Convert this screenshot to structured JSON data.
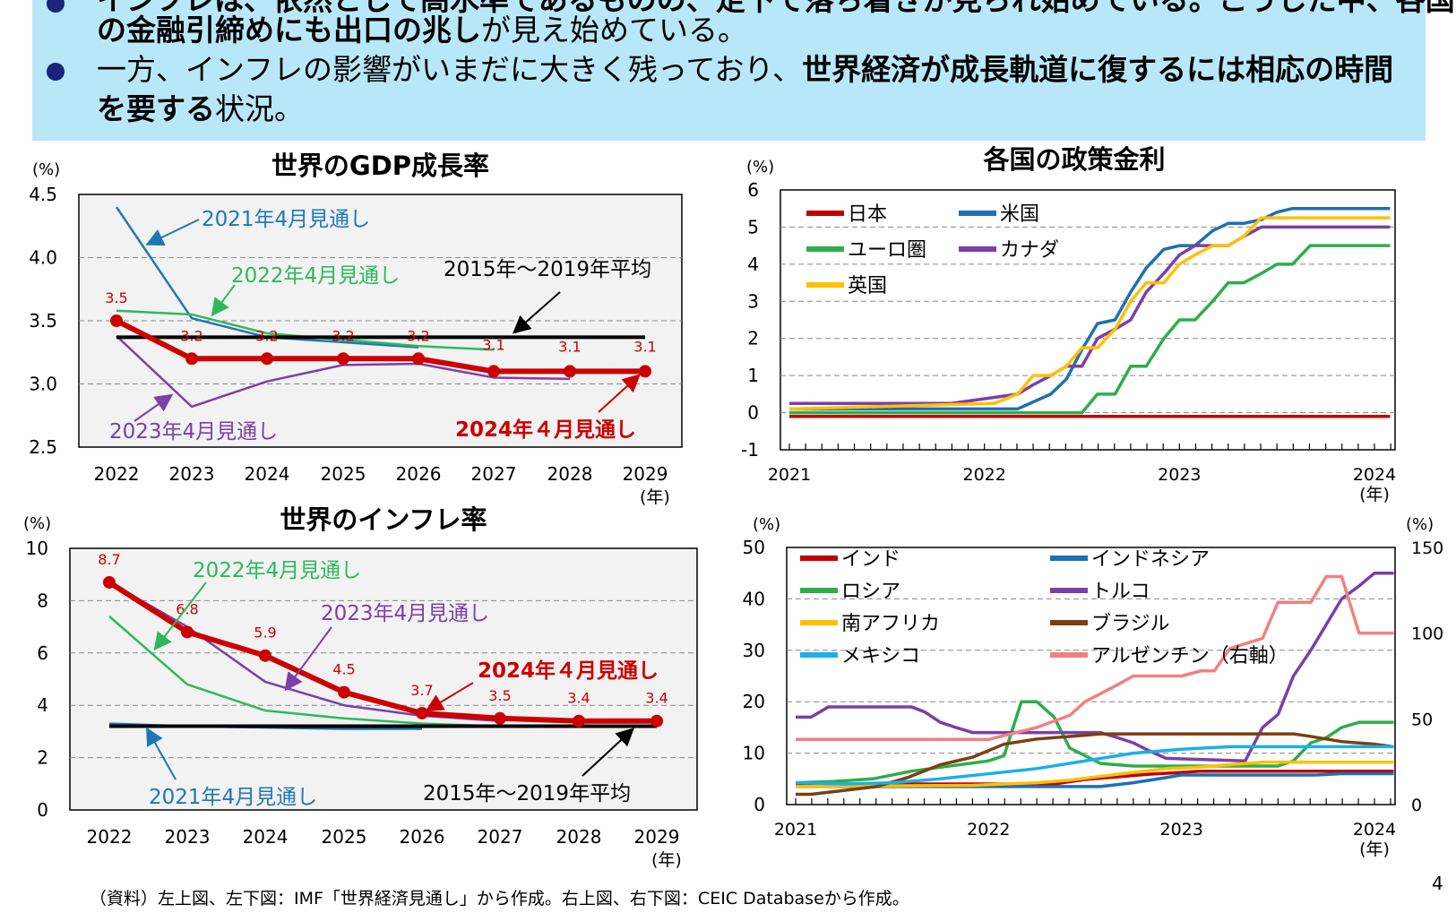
{
  "banner": {
    "line0": "インフレは、依然として高水準であるものの、足下で落ち着きが見られ始めている。こうした中、各国",
    "line1_bold": "の金融引締めにも出口の兆し",
    "line1_rest": "が見え始めている。",
    "line2_a": "一方、インフレの影響がいまだに大きく残っており、",
    "line2_bold": "世界経済が成長軌道に復するには相応の時間",
    "line3_bold": "を要する",
    "line3_rest": "状況。"
  },
  "footnote": "（資料）左上図、左下図：IMF「世界経済見通し」から作成。右上図、右下図：CEIC Databaseから作成。",
  "page_number": "4",
  "chart_data": [
    {
      "id": "gdp",
      "type": "line",
      "title": "世界のGDP成長率",
      "ylabel": "(%)",
      "xlabel": "(年)",
      "x": [
        2022,
        2023,
        2024,
        2025,
        2026,
        2027,
        2028,
        2029
      ],
      "ylim": [
        2.5,
        4.5
      ],
      "yticks": [
        "2.5",
        "3.0",
        "3.5",
        "4.0",
        "4.5"
      ],
      "series": [
        {
          "name": "2021年4月見通し",
          "color": "#1f77b4",
          "x": [
            2022,
            2023,
            2024,
            2025,
            2026
          ],
          "values": [
            4.4,
            3.52,
            3.37,
            3.33,
            3.29
          ]
        },
        {
          "name": "2022年4月見通し",
          "color": "#2eb85c",
          "x": [
            2022,
            2023,
            2024,
            2025,
            2026,
            2027
          ],
          "values": [
            3.58,
            3.55,
            3.4,
            3.35,
            3.3,
            3.27
          ]
        },
        {
          "name": "2023年4月見通し",
          "color": "#7b3fa8",
          "x": [
            2022,
            2023,
            2024,
            2025,
            2026,
            2027,
            2028
          ],
          "values": [
            3.38,
            2.82,
            3.02,
            3.15,
            3.16,
            3.05,
            3.04
          ]
        },
        {
          "name": "2015年～2019年平均",
          "color": "#000000",
          "x": [
            2022,
            2029
          ],
          "values": [
            3.37,
            3.37
          ]
        },
        {
          "name": "2024年４月見通し",
          "color": "#cc0000",
          "x": [
            2022,
            2023,
            2024,
            2025,
            2026,
            2027,
            2028,
            2029
          ],
          "values": [
            3.5,
            3.2,
            3.2,
            3.2,
            3.2,
            3.1,
            3.1,
            3.1
          ],
          "labels": [
            "3.5",
            "3.2",
            "3.2",
            "3.2",
            "3.2",
            "3.1",
            "3.1",
            "3.1"
          ]
        }
      ],
      "annotations": [
        "2021年4月見通し",
        "2022年4月見通し",
        "2015年～2019年平均",
        "2023年4月見通し",
        "2024年４月見通し"
      ]
    },
    {
      "id": "policy",
      "type": "line",
      "title": "各国の政策金利",
      "ylabel": "(%)",
      "xlabel": "(年)",
      "xlim": [
        2021,
        2024
      ],
      "xticks": [
        "2021",
        "2022",
        "2023",
        "2024"
      ],
      "ylim": [
        -1,
        6
      ],
      "yticks": [
        "-1",
        "0",
        "1",
        "2",
        "3",
        "4",
        "5",
        "6"
      ],
      "series": [
        {
          "name": "日本",
          "color": "#c00000",
          "x": [
            2021,
            2024.08
          ],
          "values": [
            -0.1,
            -0.1
          ]
        },
        {
          "name": "米国",
          "color": "#1f6fb4",
          "x": [
            2021,
            2022.17,
            2022.34,
            2022.42,
            2022.5,
            2022.58,
            2022.67,
            2022.75,
            2022.83,
            2022.92,
            2023.0,
            2023.08,
            2023.17,
            2023.25,
            2023.33,
            2023.42,
            2023.5,
            2023.58,
            2024.08
          ],
          "values": [
            0.1,
            0.1,
            0.5,
            0.9,
            1.7,
            2.4,
            2.5,
            3.25,
            3.9,
            4.4,
            4.5,
            4.5,
            4.9,
            5.1,
            5.1,
            5.2,
            5.4,
            5.5,
            5.5
          ]
        },
        {
          "name": "ユーロ圏",
          "color": "#2ead4a",
          "x": [
            2021,
            2022.5,
            2022.58,
            2022.67,
            2022.75,
            2022.83,
            2022.92,
            2023.0,
            2023.08,
            2023.17,
            2023.25,
            2023.33,
            2023.42,
            2023.5,
            2023.58,
            2023.67,
            2024.08
          ],
          "values": [
            0,
            0,
            0.5,
            0.5,
            1.25,
            1.25,
            2.0,
            2.5,
            2.5,
            3.0,
            3.5,
            3.5,
            3.75,
            4.0,
            4.0,
            4.5,
            4.5
          ]
        },
        {
          "name": "カナダ",
          "color": "#7b3fa8",
          "x": [
            2021,
            2021.83,
            2022.17,
            2022.25,
            2022.34,
            2022.42,
            2022.5,
            2022.58,
            2022.67,
            2022.75,
            2022.83,
            2022.92,
            2023.0,
            2023.08,
            2023.17,
            2023.25,
            2023.33,
            2023.42,
            2024.08
          ],
          "values": [
            0.25,
            0.25,
            0.5,
            0.75,
            1.0,
            1.25,
            1.25,
            2.0,
            2.25,
            2.5,
            3.25,
            3.75,
            4.25,
            4.5,
            4.5,
            4.5,
            4.75,
            5.0,
            5.0
          ]
        },
        {
          "name": "英国",
          "color": "#ffc000",
          "x": [
            2021,
            2022.05,
            2022.17,
            2022.25,
            2022.34,
            2022.42,
            2022.5,
            2022.58,
            2022.67,
            2022.75,
            2022.83,
            2022.92,
            2023.0,
            2023.08,
            2023.17,
            2023.25,
            2023.33,
            2023.42,
            2024.08
          ],
          "values": [
            0.1,
            0.25,
            0.5,
            1.0,
            1.0,
            1.25,
            1.75,
            1.75,
            2.25,
            3.0,
            3.5,
            3.5,
            4.0,
            4.25,
            4.5,
            4.5,
            4.75,
            5.25,
            5.25
          ]
        }
      ]
    },
    {
      "id": "inflation",
      "type": "line",
      "title": "世界のインフレ率",
      "ylabel": "(%)",
      "xlabel": "(年)",
      "x": [
        2022,
        2023,
        2024,
        2025,
        2026,
        2027,
        2028,
        2029
      ],
      "ylim": [
        0,
        10
      ],
      "yticks": [
        "0",
        "2",
        "4",
        "6",
        "8",
        "10"
      ],
      "series": [
        {
          "name": "2021年4月見通し",
          "color": "#1f77b4",
          "x": [
            2022,
            2023,
            2024,
            2025,
            2026
          ],
          "values": [
            3.3,
            3.2,
            3.15,
            3.1,
            3.1
          ]
        },
        {
          "name": "2022年4月見通し",
          "color": "#2eb85c",
          "x": [
            2022,
            2023,
            2024,
            2025,
            2026,
            2027
          ],
          "values": [
            7.4,
            4.8,
            3.8,
            3.5,
            3.3,
            3.2
          ]
        },
        {
          "name": "2023年4月見通し",
          "color": "#7b3fa8",
          "x": [
            2022,
            2023,
            2024,
            2025,
            2026,
            2027
          ],
          "values": [
            8.7,
            7.0,
            4.9,
            4.0,
            3.6,
            3.4
          ]
        },
        {
          "name": "2015年～2019年平均",
          "color": "#000000",
          "x": [
            2022,
            2029
          ],
          "values": [
            3.2,
            3.2
          ]
        },
        {
          "name": "2024年４月見通し",
          "color": "#cc0000",
          "x": [
            2022,
            2023,
            2024,
            2025,
            2026,
            2027,
            2028,
            2029
          ],
          "values": [
            8.7,
            6.8,
            5.9,
            4.5,
            3.7,
            3.5,
            3.4,
            3.4
          ],
          "labels": [
            "8.7",
            "6.8",
            "5.9",
            "4.5",
            "3.7",
            "3.5",
            "3.4",
            "3.4"
          ]
        }
      ],
      "annotations": [
        "2022年4月見通し",
        "2023年4月見通し",
        "2024年４月見通し",
        "2021年4月見通し",
        "2015年～2019年平均"
      ]
    },
    {
      "id": "emerging",
      "type": "line",
      "title": "",
      "ylabel": "(%)",
      "ylabel_right": "(%)",
      "xlabel": "(年)",
      "xlim": [
        2021,
        2024
      ],
      "xticks": [
        "2021",
        "2022",
        "2023",
        "2024"
      ],
      "ylim": [
        0,
        50
      ],
      "yticks": [
        "0",
        "10",
        "20",
        "30",
        "40",
        "50"
      ],
      "ylim_right": [
        0,
        150
      ],
      "yticks_right": [
        "0",
        "50",
        "100",
        "150"
      ],
      "series": [
        {
          "name": "インド",
          "color": "#c00000",
          "x": [
            2021,
            2022.34,
            2022.5,
            2022.67,
            2022.83,
            2023.0,
            2023.1,
            2024.1
          ],
          "values": [
            4,
            4,
            4.9,
            5.4,
            5.9,
            6.25,
            6.5,
            6.5
          ]
        },
        {
          "name": "インドネシア",
          "color": "#1f6fb4",
          "x": [
            2021,
            2022.58,
            2022.75,
            2022.92,
            2023.0,
            2023.7,
            2023.83,
            2024.1
          ],
          "values": [
            3.5,
            3.5,
            4.25,
            5.25,
            5.75,
            5.75,
            6.0,
            6.0
          ]
        },
        {
          "name": "ロシア",
          "color": "#2ead4a",
          "x": [
            2021,
            2021.2,
            2021.4,
            2021.6,
            2021.8,
            2022.0,
            2022.08,
            2022.17,
            2022.25,
            2022.34,
            2022.42,
            2022.5,
            2022.58,
            2022.75,
            2023.0,
            2023.5,
            2023.58,
            2023.67,
            2023.75,
            2023.83,
            2023.92,
            2024.1
          ],
          "values": [
            4.25,
            4.5,
            5.0,
            6.5,
            7.5,
            8.5,
            9.5,
            20,
            20,
            17,
            11,
            9.5,
            8,
            7.5,
            7.5,
            7.5,
            8.5,
            12,
            13,
            15,
            16,
            16
          ]
        },
        {
          "name": "トルコ",
          "color": "#7b3fa8",
          "x": [
            2021,
            2021.08,
            2021.17,
            2021.6,
            2021.67,
            2021.75,
            2021.83,
            2021.92,
            2022.58,
            2022.67,
            2022.75,
            2022.83,
            2022.92,
            2023.33,
            2023.42,
            2023.5,
            2023.58,
            2023.67,
            2023.75,
            2023.83,
            2023.92,
            2024.0,
            2024.1
          ],
          "values": [
            17,
            17,
            19,
            19,
            18,
            16,
            15,
            14,
            14,
            13,
            12,
            10.5,
            9,
            8.5,
            15,
            17.5,
            25,
            30,
            35,
            40,
            42.5,
            45,
            45
          ]
        },
        {
          "name": "南アフリカ",
          "color": "#ffc000",
          "x": [
            2021,
            2021.92,
            2022.08,
            2022.25,
            2022.42,
            2022.58,
            2022.75,
            2022.92,
            2023.08,
            2023.25,
            2023.42,
            2024.1
          ],
          "values": [
            3.5,
            3.75,
            4.0,
            4.25,
            4.75,
            5.5,
            6.25,
            7.0,
            7.25,
            7.75,
            8.25,
            8.25
          ]
        },
        {
          "name": "ブラジル",
          "color": "#7b3f12",
          "x": [
            2021,
            2021.08,
            2021.25,
            2021.42,
            2021.58,
            2021.75,
            2021.92,
            2022.08,
            2022.25,
            2022.42,
            2022.58,
            2023.58,
            2023.67,
            2023.83,
            2024.0,
            2024.1
          ],
          "values": [
            2.0,
            2.0,
            2.75,
            3.5,
            5.25,
            7.75,
            9.25,
            11.75,
            12.75,
            13.25,
            13.75,
            13.75,
            13.25,
            12.25,
            11.75,
            11.25
          ]
        },
        {
          "name": "メキシコ",
          "color": "#1ab0e8",
          "x": [
            2021,
            2021.25,
            2021.5,
            2021.75,
            2022.0,
            2022.25,
            2022.5,
            2022.75,
            2023.0,
            2023.25,
            2024.1
          ],
          "values": [
            4.25,
            4.0,
            4.25,
            5.0,
            6.0,
            7.0,
            8.5,
            10.0,
            10.75,
            11.25,
            11.25
          ]
        },
        {
          "name": "アルゼンチン（右軸）",
          "color": "#f28080",
          "axis": "right",
          "x": [
            2021,
            2022.0,
            2022.25,
            2022.42,
            2022.5,
            2022.67,
            2022.75,
            2023.0,
            2023.1,
            2023.17,
            2023.25,
            2023.42,
            2023.5,
            2023.67,
            2023.75,
            2023.83,
            2023.92,
            2024.1
          ],
          "values": [
            38,
            38,
            45,
            52,
            60,
            70,
            75,
            75,
            78,
            78,
            91,
            97,
            118,
            118,
            133,
            133,
            100,
            100
          ]
        }
      ]
    }
  ]
}
